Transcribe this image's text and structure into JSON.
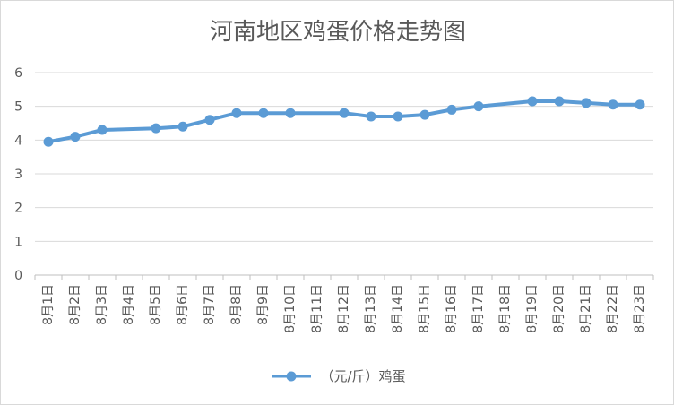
{
  "chart_data": {
    "type": "line",
    "title": "河南地区鸡蛋价格走势图",
    "categories": [
      "8月1日",
      "8月2日",
      "8月3日",
      "8月4日",
      "8月5日",
      "8月6日",
      "8月7日",
      "8月8日",
      "8月9日",
      "8月10日",
      "8月11日",
      "8月12日",
      "8月13日",
      "8月14日",
      "8月15日",
      "8月16日",
      "8月17日",
      "8月18日",
      "8月19日",
      "8月20日",
      "8月21日",
      "8月22日",
      "8月23日"
    ],
    "series": [
      {
        "name": "（元/斤）鸡蛋",
        "values": [
          3.95,
          4.1,
          4.3,
          null,
          4.35,
          4.4,
          4.6,
          4.8,
          4.8,
          4.8,
          null,
          4.8,
          4.7,
          4.7,
          4.75,
          4.9,
          5.0,
          null,
          5.15,
          5.15,
          5.1,
          5.05,
          5.05
        ],
        "color": "#5b9bd5"
      }
    ],
    "ylim": [
      0,
      6
    ],
    "yticks": [
      0,
      1,
      2,
      3,
      4,
      5,
      6
    ],
    "grid": true,
    "legend": "bottom"
  }
}
